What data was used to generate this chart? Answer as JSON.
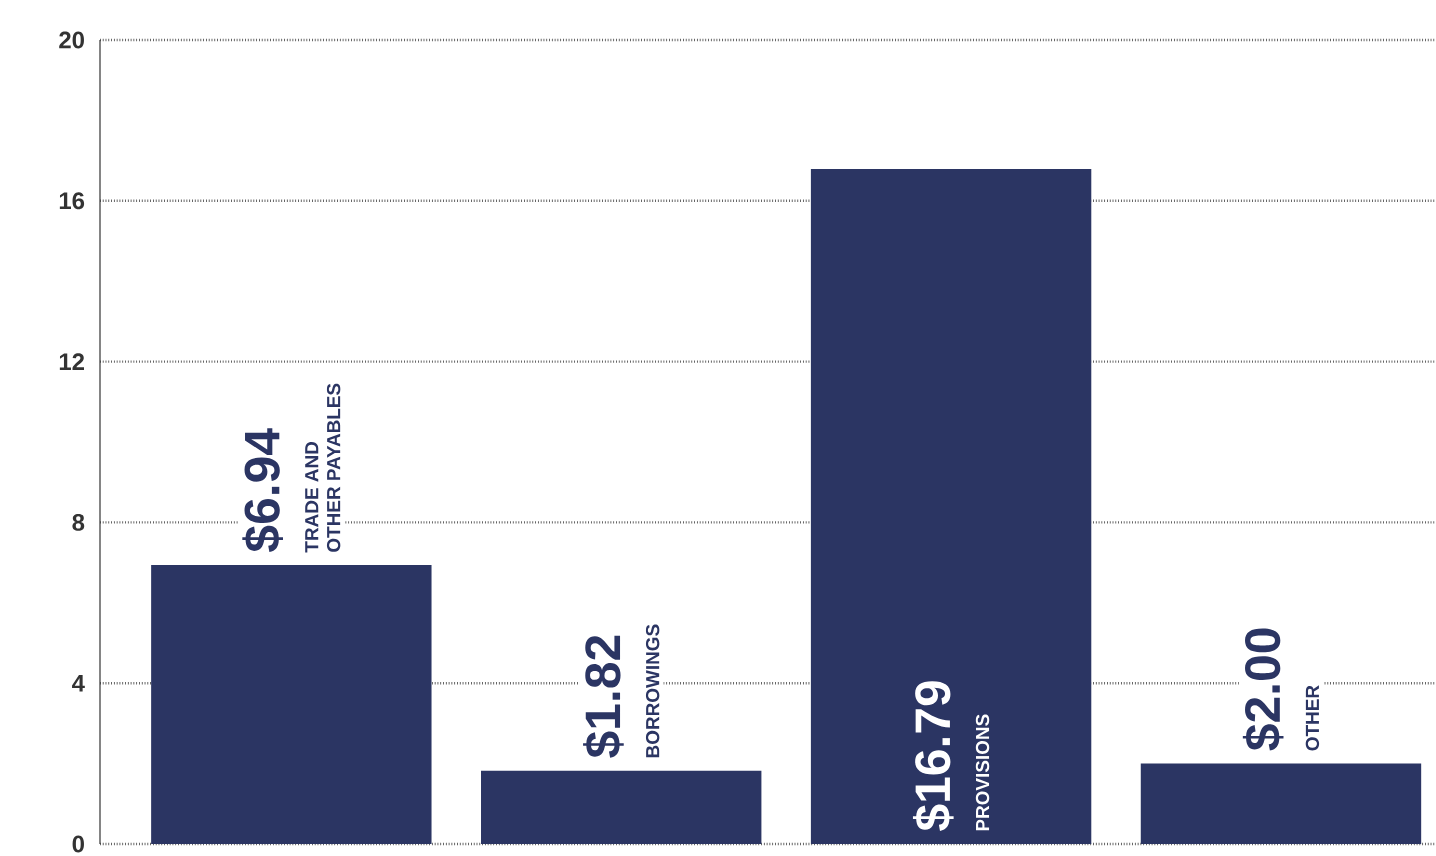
{
  "chart_data": {
    "type": "bar",
    "categories": [
      "TRADE AND OTHER PAYABLES",
      "BORROWINGS",
      "PROVISIONS",
      "OTHER"
    ],
    "values": [
      6.94,
      1.82,
      16.79,
      2.0
    ],
    "value_labels": [
      "$6.94",
      "$1.82",
      "$16.79",
      "$2.00"
    ],
    "color": "#2b3563",
    "ylim": [
      0,
      20
    ],
    "yticks": [
      0,
      4,
      8,
      12,
      16,
      20
    ],
    "grid": "y",
    "tick_labels": "y"
  }
}
